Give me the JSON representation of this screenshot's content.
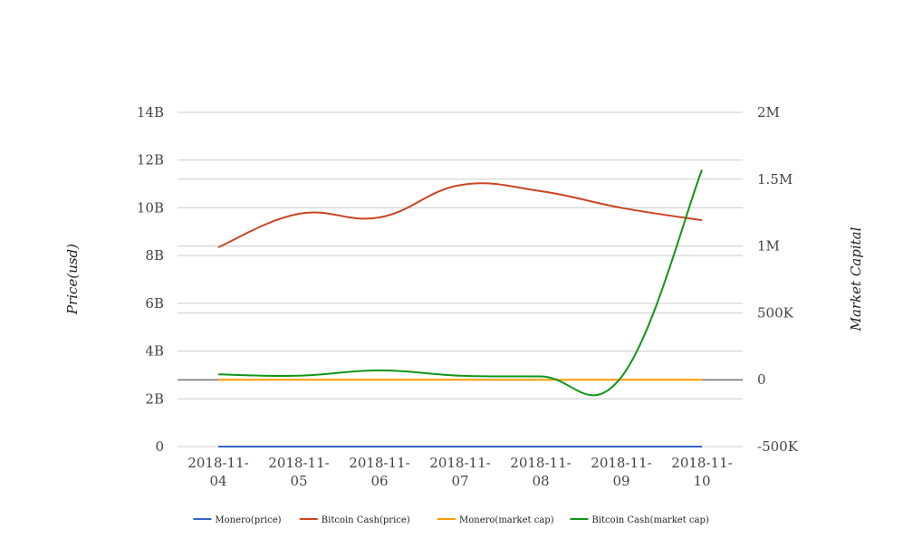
{
  "chart_data": {
    "type": "line",
    "title": "",
    "categories": [
      "2018-11-04",
      "2018-11-05",
      "2018-11-06",
      "2018-11-07",
      "2018-11-08",
      "2018-11-09",
      "2018-11-10"
    ],
    "category_lines": [
      [
        "2018-11-",
        "04"
      ],
      [
        "2018-11-",
        "05"
      ],
      [
        "2018-11-",
        "06"
      ],
      [
        "2018-11-",
        "07"
      ],
      [
        "2018-11-",
        "08"
      ],
      [
        "2018-11-",
        "09"
      ],
      [
        "2018-11-",
        "10"
      ]
    ],
    "y_left": {
      "label": "Price(usd)",
      "min": 0,
      "max": 14000000000,
      "ticks": [
        0,
        2000000000,
        4000000000,
        6000000000,
        8000000000,
        10000000000,
        12000000000,
        14000000000
      ],
      "tick_labels": [
        "0",
        "2B",
        "4B",
        "6B",
        "8B",
        "10B",
        "12B",
        "14B"
      ]
    },
    "y_right": {
      "label": "Market Capital",
      "min": -500000,
      "max": 2000000,
      "ticks": [
        -500000,
        0,
        500000,
        1000000,
        1500000,
        2000000
      ],
      "tick_labels": [
        "-500K",
        "0",
        "500K",
        "1M",
        "1.5M",
        "2M"
      ]
    },
    "grid": true,
    "legend_position": "bottom",
    "series": [
      {
        "name": "Monero(price)",
        "axis": "left",
        "color": "#3366cc",
        "values": [
          0,
          0,
          0,
          0,
          0,
          0,
          0
        ]
      },
      {
        "name": "Bitcoin Cash(price)",
        "axis": "left",
        "color": "#cc4422",
        "values": [
          8350000000,
          9750000000,
          9600000000,
          10950000000,
          10700000000,
          10000000000,
          9480000000
        ]
      },
      {
        "name": "Monero(market cap)",
        "axis": "right",
        "color": "#ff9900",
        "values": [
          0,
          0,
          0,
          0,
          0,
          0,
          0
        ]
      },
      {
        "name": "Bitcoin Cash(market cap)",
        "axis": "right",
        "color": "#109618",
        "values": [
          40000,
          30000,
          70000,
          30000,
          25000,
          20000,
          1570000
        ]
      }
    ]
  }
}
